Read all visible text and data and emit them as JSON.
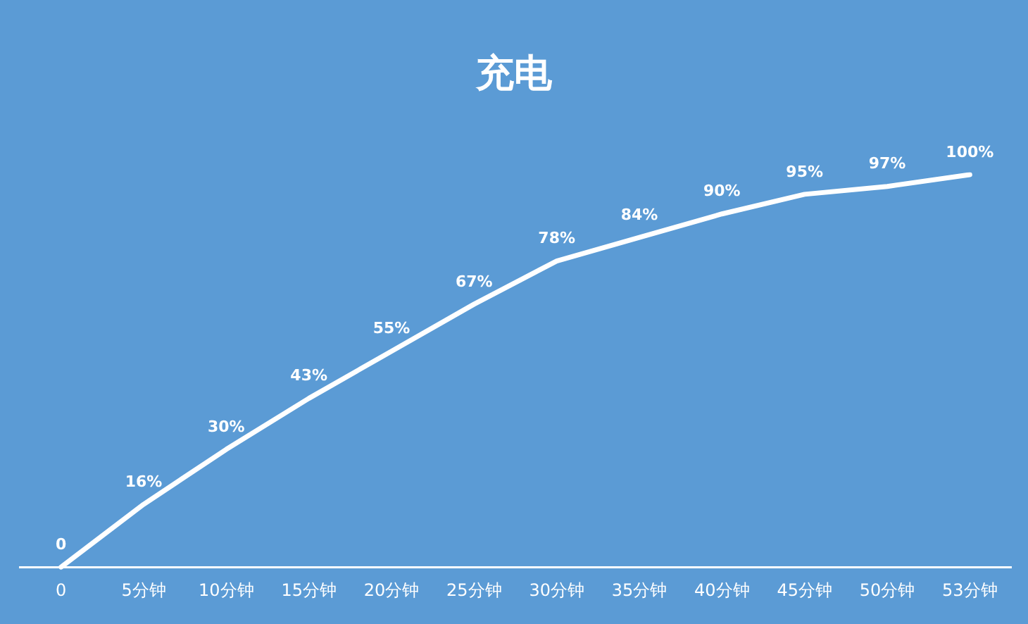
{
  "chart_data": {
    "type": "line",
    "title": "充电",
    "categories": [
      "0",
      "5分钟",
      "10分钟",
      "15分钟",
      "20分钟",
      "25分钟",
      "30分钟",
      "35分钟",
      "40分钟",
      "45分钟",
      "50分钟",
      "53分钟"
    ],
    "series": [
      {
        "color": "#ffffff",
        "values": [
          0,
          16,
          30,
          43,
          55,
          67,
          78,
          84,
          90,
          95,
          97,
          100
        ],
        "value_labels": [
          "0",
          "16%",
          "30%",
          "43%",
          "55%",
          "67%",
          "78%",
          "84%",
          "90%",
          "95%",
          "97%",
          "100%"
        ]
      }
    ],
    "marker": "none",
    "line_style": "solid",
    "grid": false,
    "legend": false
  }
}
